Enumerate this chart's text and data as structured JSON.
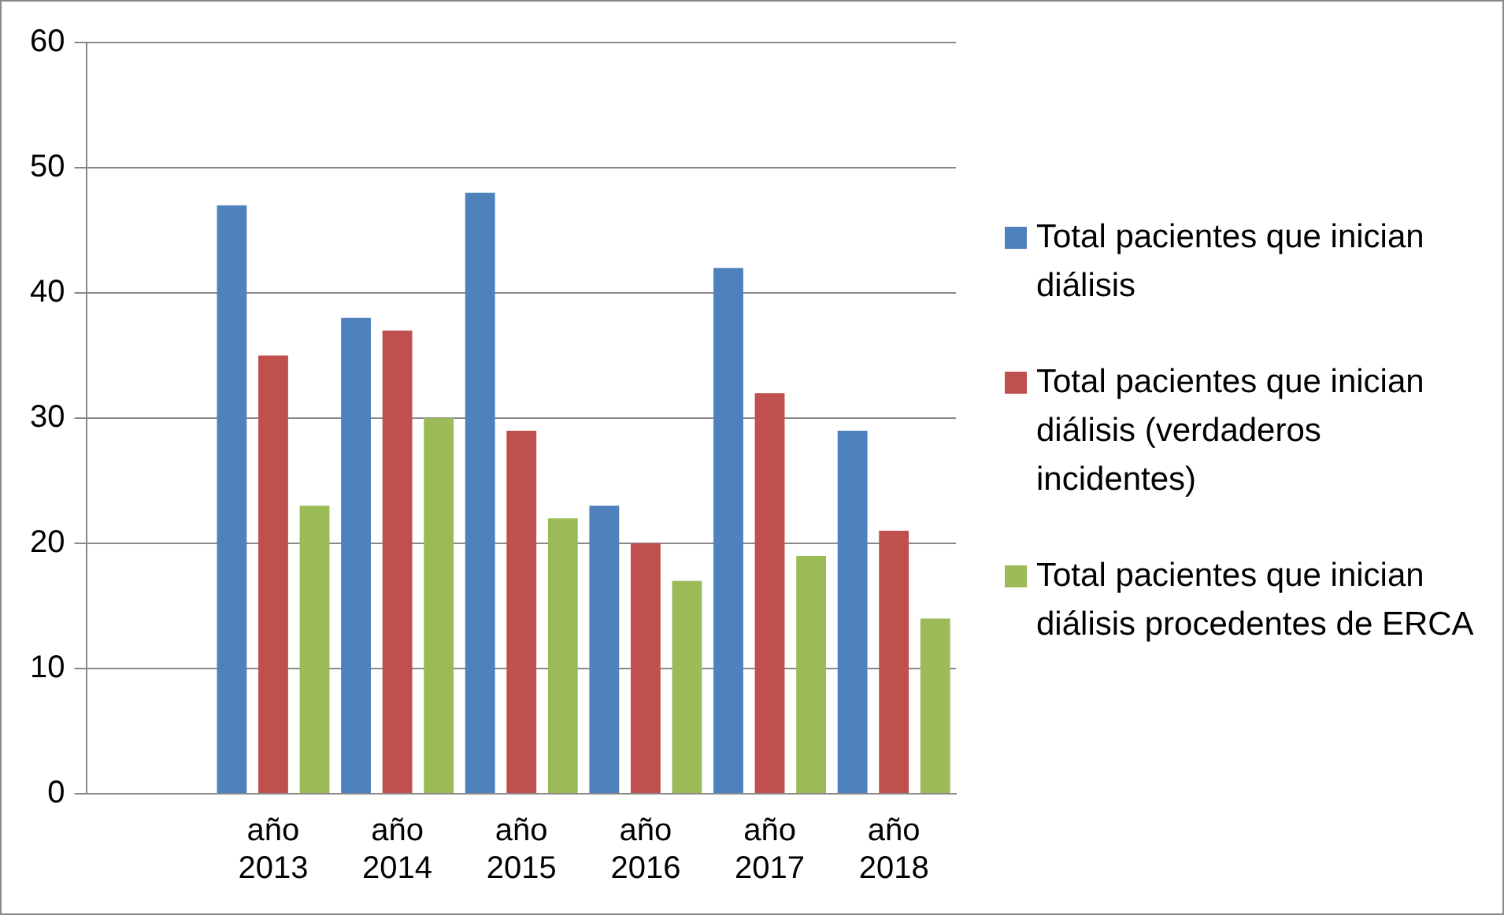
{
  "chart_data": {
    "type": "bar",
    "categories": [
      null,
      "año 2013",
      "año 2014",
      "año 2015",
      "año 2016",
      "año 2017",
      "año 2018"
    ],
    "series": [
      {
        "name": "Total pacientes que inician diálisis",
        "color": "#4f81bd",
        "values": [
          null,
          47,
          38,
          48,
          23,
          42,
          29
        ]
      },
      {
        "name": "Total pacientes que inician diálisis (verdaderos incidentes)",
        "color": "#c0504d",
        "values": [
          null,
          35,
          37,
          29,
          20,
          32,
          21
        ]
      },
      {
        "name": "Total pacientes que inician diálisis procedentes de ERCA",
        "color": "#9bbb59",
        "values": [
          null,
          23,
          30,
          22,
          17,
          19,
          14
        ]
      }
    ],
    "ylim": [
      0,
      60
    ],
    "yticks": [
      0,
      10,
      20,
      30,
      40,
      50,
      60
    ],
    "grid": "y",
    "legend": "right"
  }
}
